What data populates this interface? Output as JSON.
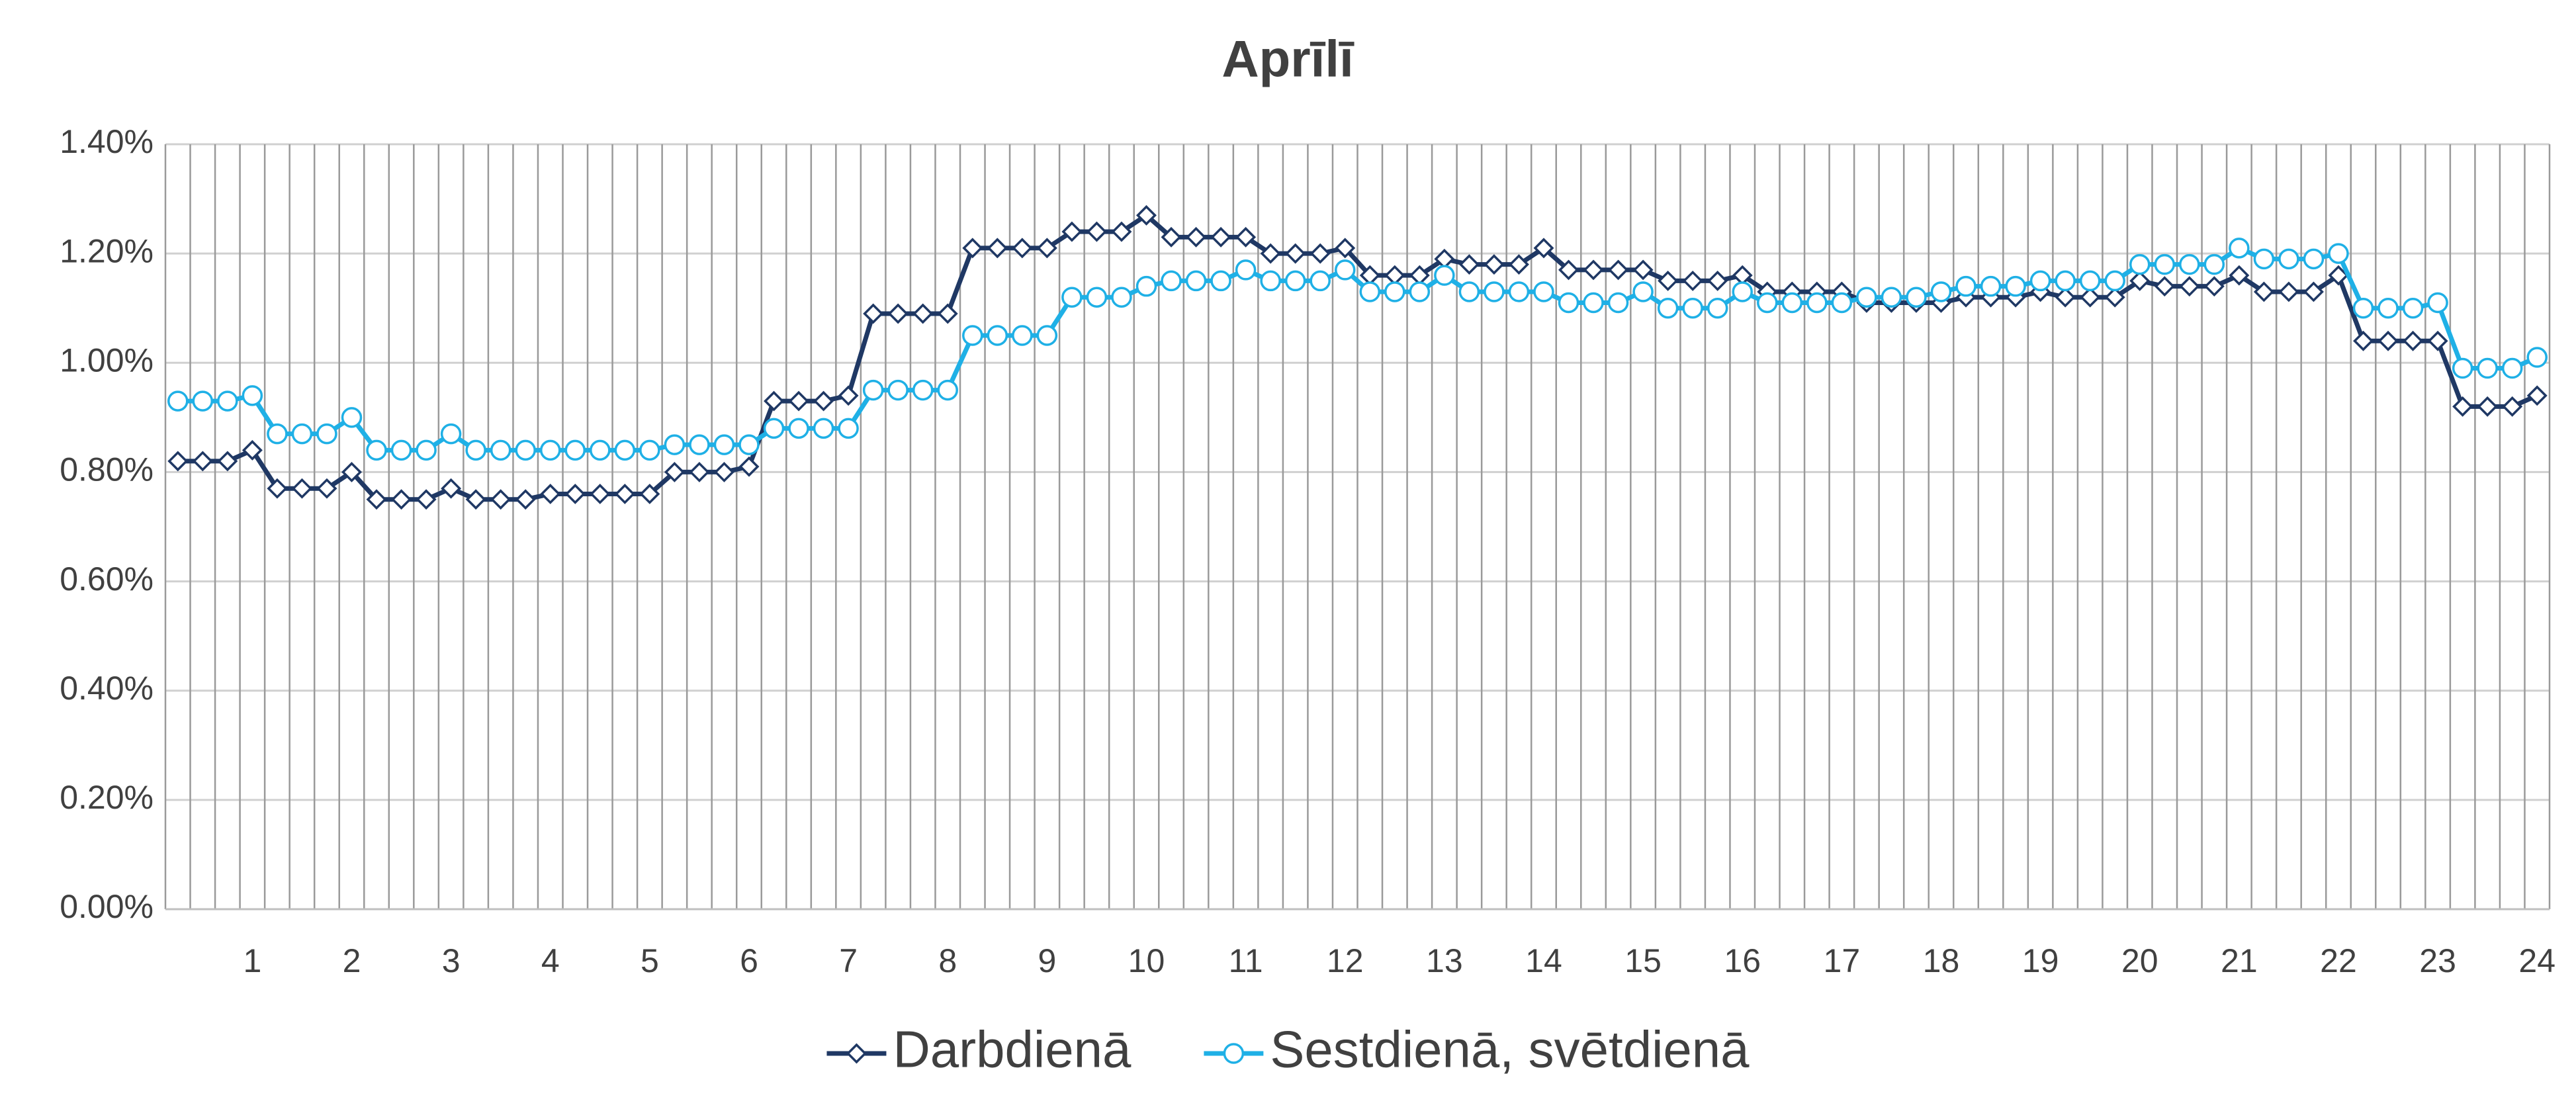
{
  "chart_data": {
    "type": "line",
    "title": "Aprīlī",
    "categories": [
      null,
      null,
      null,
      "1",
      null,
      null,
      null,
      "2",
      null,
      null,
      null,
      "3",
      null,
      null,
      null,
      "4",
      null,
      null,
      null,
      "5",
      null,
      null,
      null,
      "6",
      null,
      null,
      null,
      "7",
      null,
      null,
      null,
      "8",
      null,
      null,
      null,
      "9",
      null,
      null,
      null,
      "10",
      null,
      null,
      null,
      "11",
      null,
      null,
      null,
      "12",
      null,
      null,
      null,
      "13",
      null,
      null,
      null,
      "14",
      null,
      null,
      null,
      "15",
      null,
      null,
      null,
      "16",
      null,
      null,
      null,
      "17",
      null,
      null,
      null,
      "18",
      null,
      null,
      null,
      "19",
      null,
      null,
      null,
      "20",
      null,
      null,
      null,
      "21",
      null,
      null,
      null,
      "22",
      null,
      null,
      null,
      "23",
      null,
      null,
      null,
      "24"
    ],
    "series": [
      {
        "name": "Darbdienā",
        "color": "#1f3864",
        "marker": "diamond",
        "values": [
          0.82,
          0.82,
          0.82,
          0.84,
          0.77,
          0.77,
          0.77,
          0.8,
          0.75,
          0.75,
          0.75,
          0.77,
          0.75,
          0.75,
          0.75,
          0.76,
          0.76,
          0.76,
          0.76,
          0.76,
          0.8,
          0.8,
          0.8,
          0.81,
          0.93,
          0.93,
          0.93,
          0.94,
          1.09,
          1.09,
          1.09,
          1.09,
          1.21,
          1.21,
          1.21,
          1.21,
          1.24,
          1.24,
          1.24,
          1.27,
          1.23,
          1.23,
          1.23,
          1.23,
          1.2,
          1.2,
          1.2,
          1.21,
          1.16,
          1.16,
          1.16,
          1.19,
          1.18,
          1.18,
          1.18,
          1.21,
          1.17,
          1.17,
          1.17,
          1.17,
          1.15,
          1.15,
          1.15,
          1.16,
          1.13,
          1.13,
          1.13,
          1.13,
          1.11,
          1.11,
          1.11,
          1.11,
          1.12,
          1.12,
          1.12,
          1.13,
          1.12,
          1.12,
          1.12,
          1.15,
          1.14,
          1.14,
          1.14,
          1.16,
          1.13,
          1.13,
          1.13,
          1.16,
          1.04,
          1.04,
          1.04,
          1.04,
          0.92,
          0.92,
          0.92,
          0.94
        ]
      },
      {
        "name": "Sestdienā, svētdienā",
        "color": "#1fb0e6",
        "marker": "circle",
        "values": [
          0.93,
          0.93,
          0.93,
          0.94,
          0.87,
          0.87,
          0.87,
          0.9,
          0.84,
          0.84,
          0.84,
          0.87,
          0.84,
          0.84,
          0.84,
          0.84,
          0.84,
          0.84,
          0.84,
          0.84,
          0.85,
          0.85,
          0.85,
          0.85,
          0.88,
          0.88,
          0.88,
          0.88,
          0.95,
          0.95,
          0.95,
          0.95,
          1.05,
          1.05,
          1.05,
          1.05,
          1.12,
          1.12,
          1.12,
          1.14,
          1.15,
          1.15,
          1.15,
          1.17,
          1.15,
          1.15,
          1.15,
          1.17,
          1.13,
          1.13,
          1.13,
          1.16,
          1.13,
          1.13,
          1.13,
          1.13,
          1.11,
          1.11,
          1.11,
          1.13,
          1.1,
          1.1,
          1.1,
          1.13,
          1.11,
          1.11,
          1.11,
          1.11,
          1.12,
          1.12,
          1.12,
          1.13,
          1.14,
          1.14,
          1.14,
          1.15,
          1.15,
          1.15,
          1.15,
          1.18,
          1.18,
          1.18,
          1.18,
          1.21,
          1.19,
          1.19,
          1.19,
          1.2,
          1.1,
          1.1,
          1.1,
          1.11,
          0.99,
          0.99,
          0.99,
          1.01
        ]
      }
    ],
    "ylim": [
      0,
      1.4
    ],
    "yticks": [
      {
        "value": 0,
        "label": "0.00%"
      },
      {
        "value": 0.2,
        "label": "0.20%"
      },
      {
        "value": 0.4,
        "label": "0.40%"
      },
      {
        "value": 0.6,
        "label": "0.60%"
      },
      {
        "value": 0.8,
        "label": "0.80%"
      },
      {
        "value": 1.0,
        "label": "1.00%"
      },
      {
        "value": 1.2,
        "label": "1.20%"
      },
      {
        "value": 1.4,
        "label": "1.40%"
      }
    ],
    "grid": true,
    "legend": "bottom"
  }
}
